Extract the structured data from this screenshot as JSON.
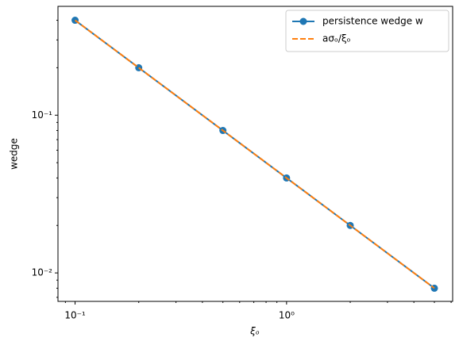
{
  "chart_data": {
    "type": "line",
    "x": [
      0.1,
      0.2,
      0.5,
      1,
      2,
      5
    ],
    "series": [
      {
        "name": "persistence wedge w",
        "color": "#1f77b4",
        "values": [
          0.4,
          0.2,
          0.08,
          0.04,
          0.02,
          0.008
        ],
        "marker": true,
        "dashed": false
      },
      {
        "name": "aσₒ/ξₒ",
        "color": "#ff7f0e",
        "values": [
          0.4,
          0.2,
          0.08,
          0.04,
          0.02,
          0.008
        ],
        "marker": false,
        "dashed": true
      }
    ],
    "x_label": "ξₒ",
    "y_label": "wedge",
    "xscale": "log",
    "yscale": "log",
    "xlim": [
      0.083,
      6.1
    ],
    "ylim": [
      0.0066,
      0.49
    ],
    "xticks": [
      {
        "value": 0.1,
        "label": "10⁻¹"
      },
      {
        "value": 1,
        "label": "10⁰"
      }
    ],
    "yticks": [
      {
        "value": 0.01,
        "label": "10⁻²"
      },
      {
        "value": 0.1,
        "label": "10⁻¹"
      }
    ],
    "xminorticks": [
      0.09,
      0.2,
      0.3,
      0.4,
      0.5,
      0.6,
      0.7,
      0.8,
      0.9,
      2,
      3,
      4,
      5,
      6
    ],
    "yminorticks": [
      0.007,
      0.008,
      0.009,
      0.02,
      0.03,
      0.04,
      0.05,
      0.06,
      0.07,
      0.08,
      0.09,
      0.2,
      0.3,
      0.4
    ],
    "legend": "upper right"
  }
}
